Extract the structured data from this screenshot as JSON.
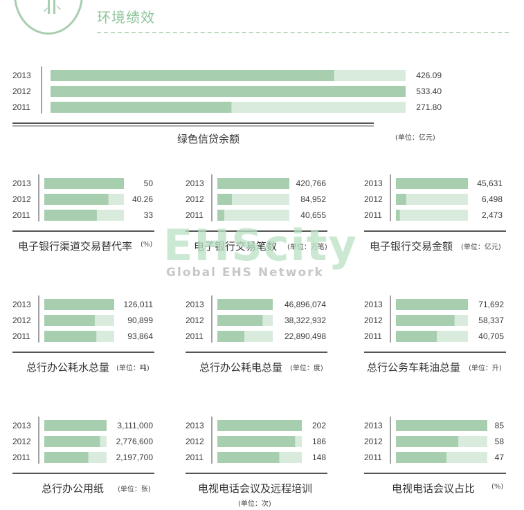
{
  "header": {
    "title": "环境绩效"
  },
  "watermark": {
    "main": "EHScity",
    "sub": "Global EHS Network"
  },
  "colors": {
    "bar_fill": "#a7ceae",
    "bar_track": "#d9ebdc",
    "accent": "#8cc59a"
  },
  "chart_data": [
    {
      "id": "green-credit",
      "type": "bar",
      "title": "绿色信贷余额",
      "unit": "(单位：亿元)",
      "categories": [
        "2013",
        "2012",
        "2011"
      ],
      "values": [
        426.09,
        533.4,
        271.8
      ],
      "value_labels": [
        "426.09",
        "533.40",
        "271.80"
      ],
      "ylim": [
        0,
        533.4
      ]
    },
    {
      "id": "ebank-substitution",
      "type": "bar",
      "title": "电子银行渠道交易替代率",
      "unit": "(%)",
      "categories": [
        "2013",
        "2012",
        "2011"
      ],
      "values": [
        50,
        40.26,
        33
      ],
      "value_labels": [
        "50",
        "40.26",
        "33"
      ],
      "ylim": [
        0,
        50
      ]
    },
    {
      "id": "ebank-count",
      "type": "bar",
      "title": "电子银行交易笔数",
      "unit": "(单位：万笔)",
      "categories": [
        "2013",
        "2012",
        "2011"
      ],
      "values": [
        420766,
        84952,
        40655
      ],
      "value_labels": [
        "420,766",
        "84,952",
        "40,655"
      ],
      "ylim": [
        0,
        420766
      ]
    },
    {
      "id": "ebank-amount",
      "type": "bar",
      "title": "电子银行交易金额",
      "unit": "(单位：亿元)",
      "categories": [
        "2013",
        "2012",
        "2011"
      ],
      "values": [
        45631,
        6498,
        2473
      ],
      "value_labels": [
        "45,631",
        "6,498",
        "2,473"
      ],
      "ylim": [
        0,
        45631
      ]
    },
    {
      "id": "water",
      "type": "bar",
      "title": "总行办公耗水总量",
      "unit": "(单位：吨)",
      "categories": [
        "2013",
        "2012",
        "2011"
      ],
      "values": [
        126011,
        90899,
        93864
      ],
      "value_labels": [
        "126,011",
        "90,899",
        "93,864"
      ],
      "ylim": [
        0,
        126011
      ]
    },
    {
      "id": "electricity",
      "type": "bar",
      "title": "总行办公耗电总量",
      "unit": "(单位：度)",
      "categories": [
        "2013",
        "2012",
        "2011"
      ],
      "values": [
        46896074,
        38322932,
        22890498
      ],
      "value_labels": [
        "46,896,074",
        "38,322,932",
        "22,890,498"
      ],
      "ylim": [
        0,
        46896074
      ]
    },
    {
      "id": "fuel",
      "type": "bar",
      "title": "总行公务车耗油总量",
      "unit": "(单位：升)",
      "categories": [
        "2013",
        "2012",
        "2011"
      ],
      "values": [
        71692,
        58337,
        40705
      ],
      "value_labels": [
        "71,692",
        "58,337",
        "40,705"
      ],
      "ylim": [
        0,
        71692
      ]
    },
    {
      "id": "paper",
      "type": "bar",
      "title": "总行办公用纸",
      "unit": "(单位：张)",
      "categories": [
        "2013",
        "2012",
        "2011"
      ],
      "values": [
        3111000,
        2776600,
        2197700
      ],
      "value_labels": [
        "3,111,000",
        "2,776,600",
        "2,197,700"
      ],
      "ylim": [
        0,
        3111000
      ]
    },
    {
      "id": "video-conf",
      "type": "bar",
      "title": "电视电话会议及远程培训",
      "unit": "(单位：次)",
      "categories": [
        "2013",
        "2012",
        "2011"
      ],
      "values": [
        202,
        186,
        148
      ],
      "value_labels": [
        "202",
        "186",
        "148"
      ],
      "ylim": [
        0,
        202
      ]
    },
    {
      "id": "video-conf-share",
      "type": "bar",
      "title": "电视电话会议占比",
      "unit": "(%)",
      "categories": [
        "2013",
        "2012",
        "2011"
      ],
      "values": [
        85,
        58,
        47
      ],
      "value_labels": [
        "85",
        "58",
        "47"
      ],
      "ylim": [
        0,
        85
      ]
    }
  ]
}
